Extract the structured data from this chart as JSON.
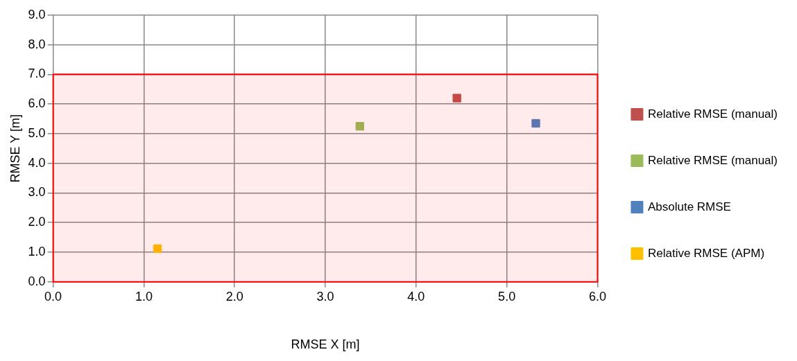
{
  "chart_data": {
    "type": "scatter",
    "xlabel": "RMSE X [m]",
    "ylabel": "RMSE Y [m]",
    "xlim": [
      0,
      6
    ],
    "ylim": [
      0,
      9
    ],
    "xticks": [
      {
        "value": 0,
        "label": "0.0"
      },
      {
        "value": 1,
        "label": "1.0"
      },
      {
        "value": 2,
        "label": "2.0"
      },
      {
        "value": 3,
        "label": "3.0"
      },
      {
        "value": 4,
        "label": "4.0"
      },
      {
        "value": 5,
        "label": "5.0"
      },
      {
        "value": 6,
        "label": "6.0"
      }
    ],
    "yticks": [
      {
        "value": 0,
        "label": "0.0"
      },
      {
        "value": 1,
        "label": "1.0"
      },
      {
        "value": 2,
        "label": "2.0"
      },
      {
        "value": 3,
        "label": "3.0"
      },
      {
        "value": 4,
        "label": "4.0"
      },
      {
        "value": 5,
        "label": "5.0"
      },
      {
        "value": 6,
        "label": "6.0"
      },
      {
        "value": 7,
        "label": "7.0"
      },
      {
        "value": 8,
        "label": "8.0"
      },
      {
        "value": 9,
        "label": "9.0"
      }
    ],
    "series": [
      {
        "name": "Relative RMSE (manual)",
        "color": "#c0504d",
        "x": [
          4.45
        ],
        "values": [
          6.2
        ]
      },
      {
        "name": "Relative RMSE (manual)",
        "color": "#9bbb59",
        "x": [
          3.38
        ],
        "values": [
          5.25
        ]
      },
      {
        "name": "Absolute RMSE",
        "color": "#4f81bd",
        "x": [
          5.32
        ],
        "values": [
          5.35
        ]
      },
      {
        "name": "Relative RMSE (APM)",
        "color": "#ffc000",
        "x": [
          1.15
        ],
        "values": [
          1.12
        ]
      }
    ],
    "bands": [
      {
        "axis": "y",
        "from": 0,
        "to": 7,
        "color": "#ff0000"
      }
    ],
    "grid": true,
    "legend": "right",
    "marker": "square"
  }
}
